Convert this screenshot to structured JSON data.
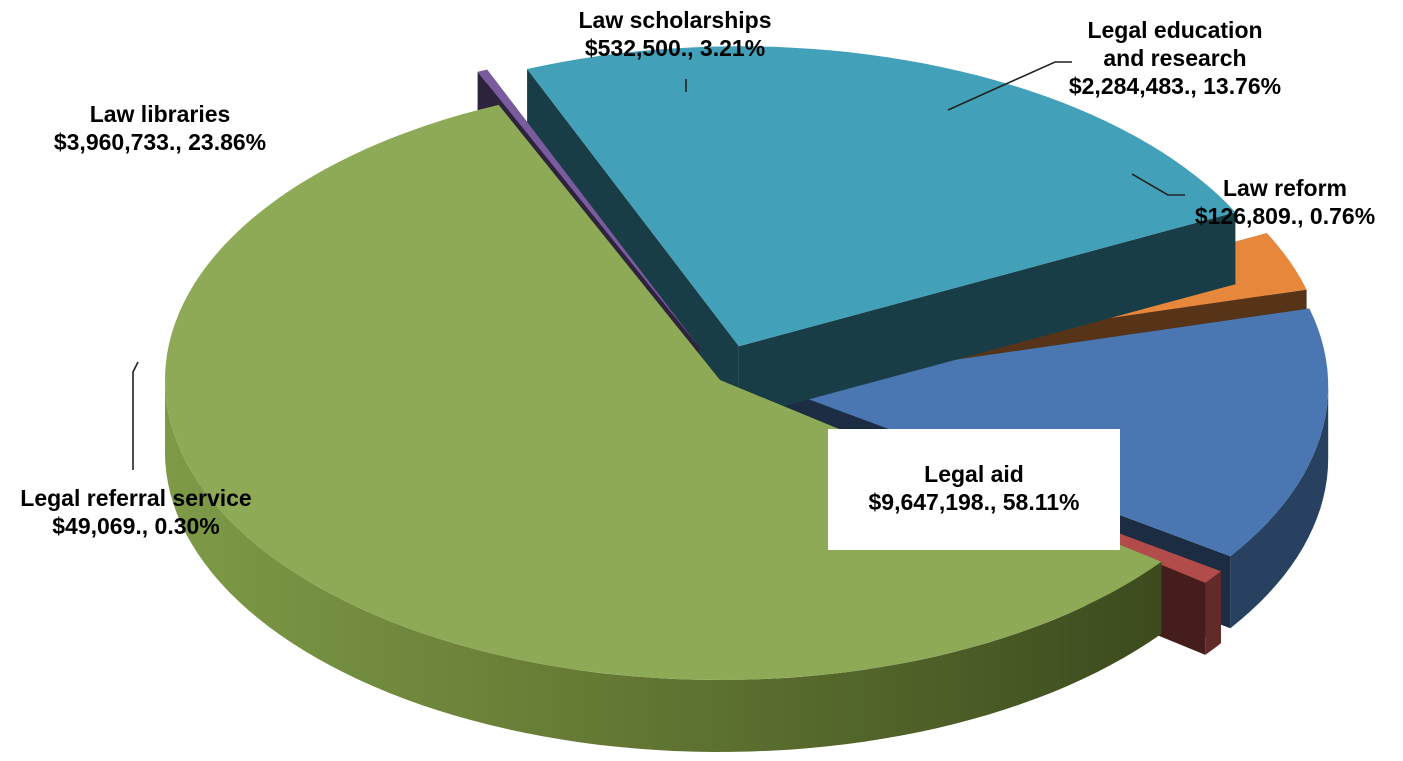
{
  "chart_data": {
    "type": "pie",
    "style": "3d-exploded",
    "slices": [
      {
        "label": "Legal education and research",
        "label_lines": [
          "Legal education",
          "and research"
        ],
        "value": 2284483,
        "value_label": "$2,284,483., 13.76%",
        "percent": 13.76,
        "color": "#4A77B1"
      },
      {
        "label": "Law reform",
        "label_lines": [
          "Law reform"
        ],
        "value": 126809,
        "value_label": "$126,809., 0.76%",
        "percent": 0.76,
        "color": "#B24C4A"
      },
      {
        "label": "Legal aid",
        "label_lines": [
          "Legal aid"
        ],
        "value": 9647198,
        "value_label": "$9,647,198., 58.11%",
        "percent": 58.11,
        "color": "#8EAA57"
      },
      {
        "label": "Legal referral service",
        "label_lines": [
          "Legal referral service"
        ],
        "value": 49069,
        "value_label": "$49,069., 0.30%",
        "percent": 0.3,
        "color": "#7A5B9E"
      },
      {
        "label": "Law libraries",
        "label_lines": [
          "Law libraries"
        ],
        "value": 3960733,
        "value_label": "$3,960,733., 23.86%",
        "percent": 23.86,
        "color": "#42A0B8"
      },
      {
        "label": "Law scholarships",
        "label_lines": [
          "Law scholarships"
        ],
        "value": 532500,
        "value_label": "$532,500., 3.21%",
        "percent": 3.21,
        "color": "#E6873C"
      }
    ],
    "legend": "none",
    "data_labels": "outside with leader lines"
  }
}
